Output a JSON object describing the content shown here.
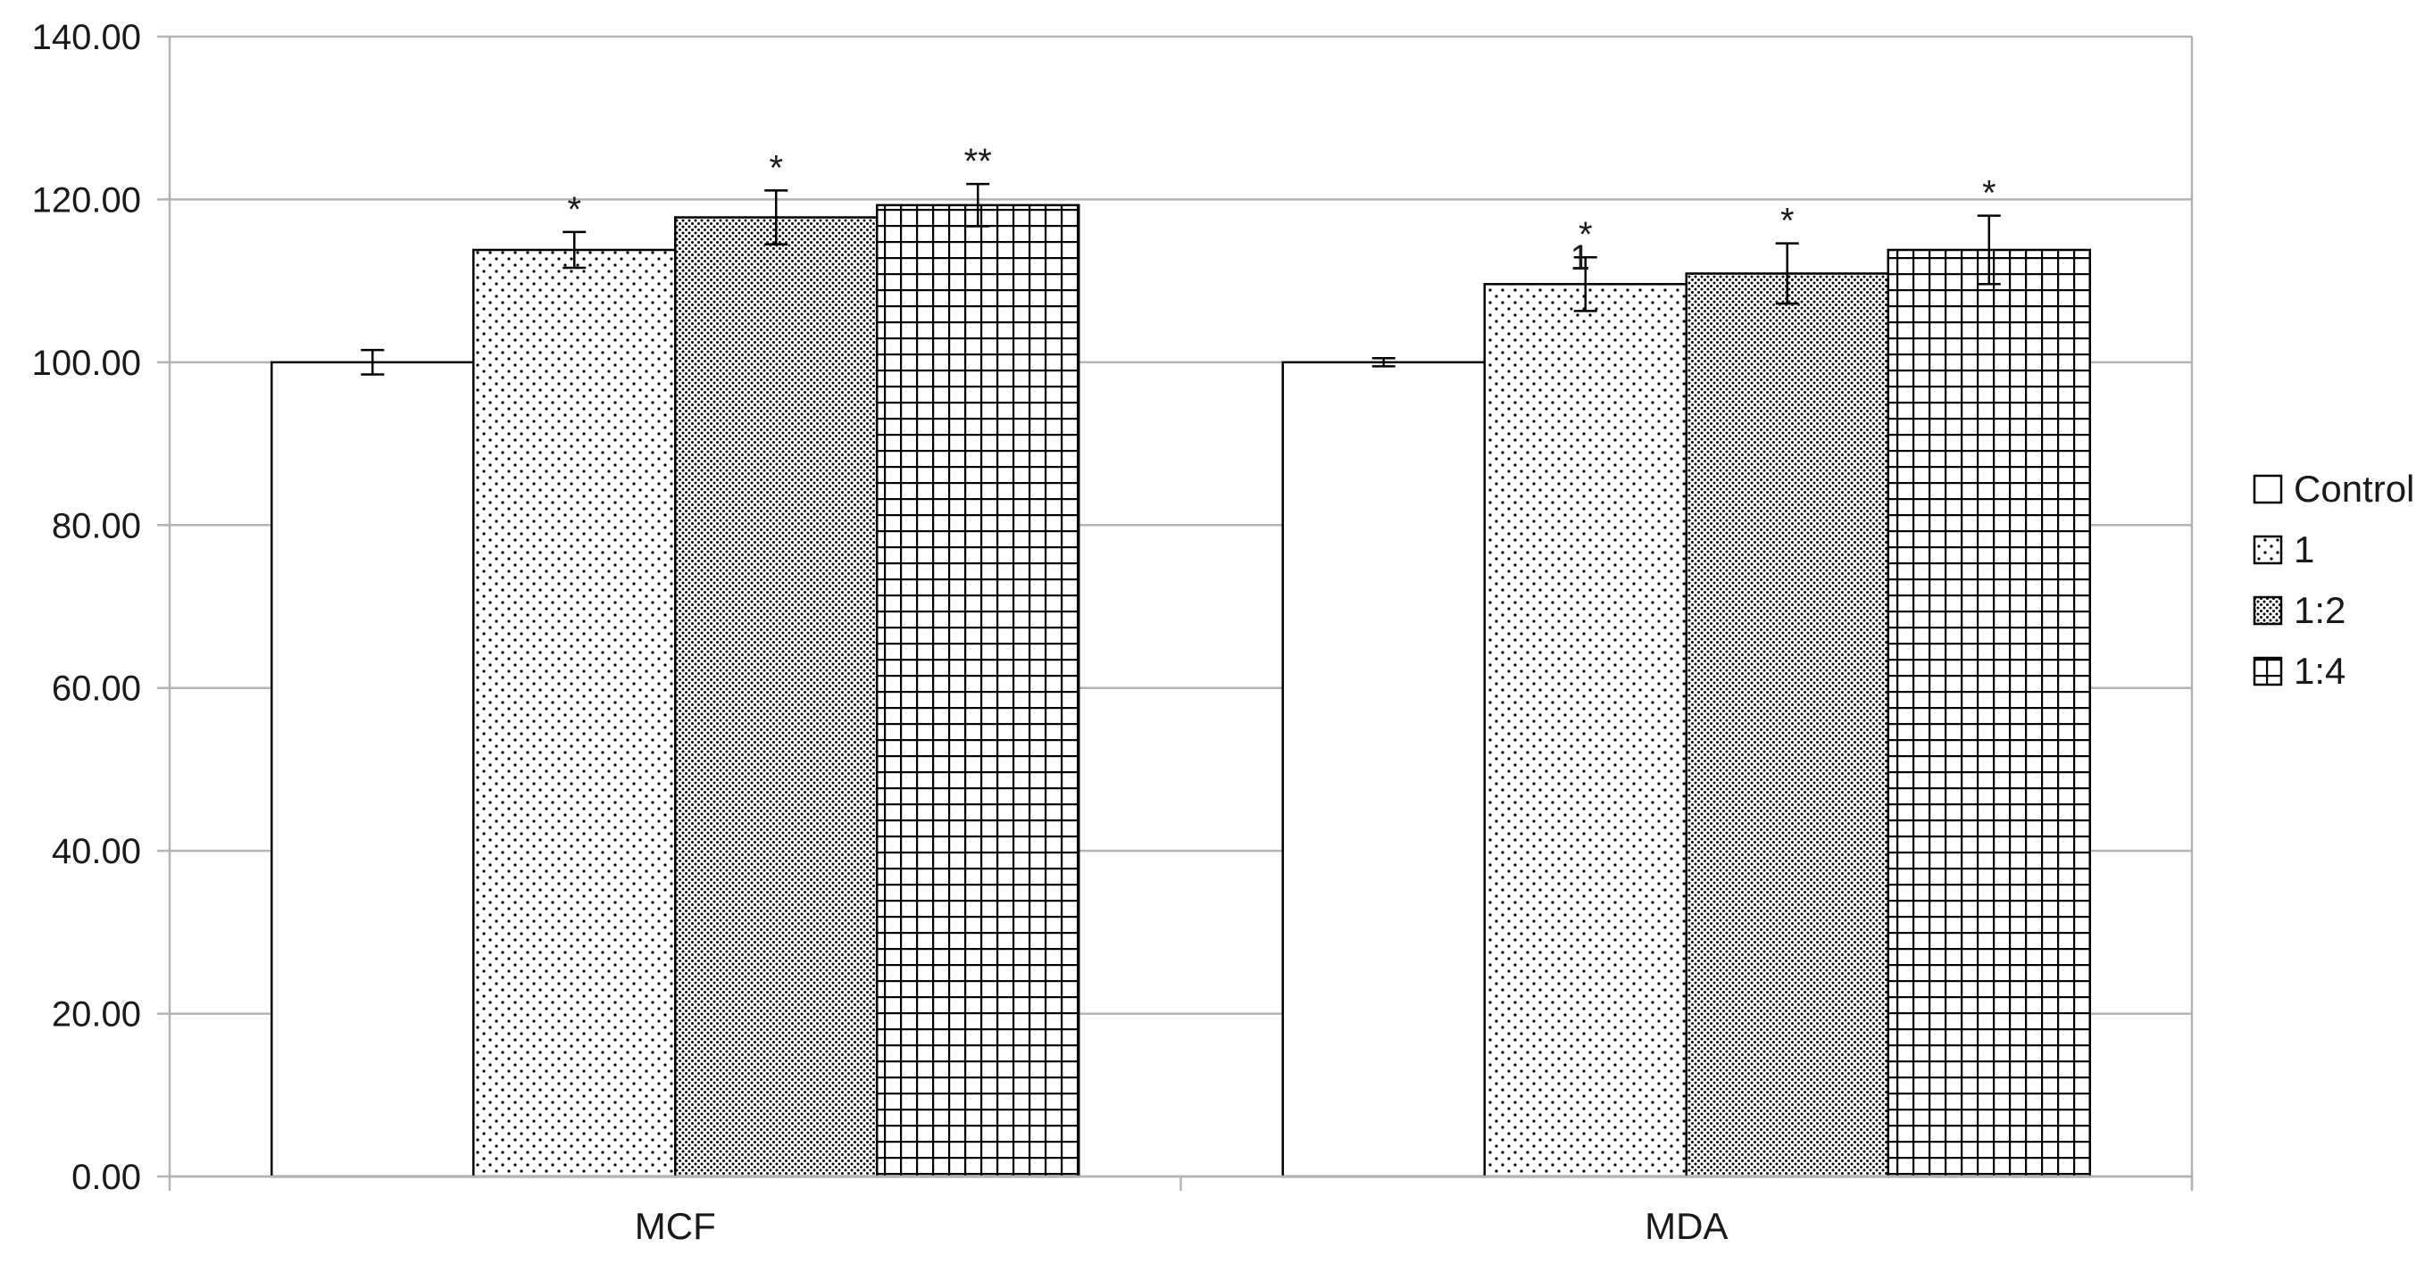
{
  "chart_data": {
    "type": "bar",
    "categories": [
      "MCF",
      "MDA"
    ],
    "series": [
      {
        "name": "Control",
        "pattern": "none",
        "values": [
          100.0,
          100.0
        ],
        "errors": [
          1.5,
          0.5
        ],
        "annotations": [
          "",
          ""
        ]
      },
      {
        "name": "1",
        "pattern": "sparse-dots",
        "values": [
          113.8,
          109.6
        ],
        "errors": [
          2.2,
          3.3
        ],
        "annotations": [
          "*",
          "*"
        ]
      },
      {
        "name": "1:2",
        "pattern": "dense-dots",
        "values": [
          117.8,
          110.9
        ],
        "errors": [
          3.3,
          3.7
        ],
        "annotations": [
          "*",
          "*"
        ]
      },
      {
        "name": "1:4",
        "pattern": "grid",
        "values": [
          119.3,
          113.8
        ],
        "errors": [
          2.6,
          4.2
        ],
        "annotations": [
          "**",
          "*"
        ]
      }
    ],
    "extra_annotations": [
      {
        "category": "MDA",
        "series": "1",
        "text": "1"
      }
    ],
    "yticks": [
      "0.00",
      "20.00",
      "40.00",
      "60.00",
      "80.00",
      "100.00",
      "120.00",
      "140.00"
    ],
    "ylim": [
      0,
      140
    ],
    "grid": true,
    "legend_position": "right",
    "colors": {
      "bar_fill": "#ffffff",
      "bar_stroke": "#000000",
      "pattern": "#000000",
      "gridline": "#b3b3b3",
      "axis": "#b3b3b3",
      "text": "#1a1a1a"
    }
  }
}
